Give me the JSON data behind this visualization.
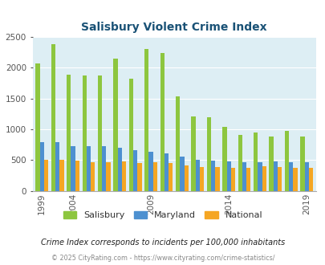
{
  "title": "Salisbury Violent Crime Index",
  "title_color": "#1a5276",
  "subtitle": "Crime Index corresponds to incidents per 100,000 inhabitants",
  "footer": "© 2025 CityRating.com - https://www.cityrating.com/crime-statistics/",
  "years": [
    1999,
    2000,
    2004,
    2005,
    2006,
    2007,
    2008,
    2009,
    2010,
    2011,
    2012,
    2013,
    2014,
    2015,
    2016,
    2017,
    2018,
    2019
  ],
  "salisbury": [
    2070,
    2380,
    1890,
    1870,
    1870,
    2150,
    1820,
    2310,
    2240,
    1540,
    1210,
    1200,
    1040,
    910,
    950,
    880,
    980,
    880
  ],
  "maryland": [
    790,
    795,
    720,
    725,
    725,
    700,
    660,
    635,
    605,
    555,
    500,
    490,
    480,
    465,
    460,
    480,
    470,
    465
  ],
  "national": [
    500,
    500,
    485,
    470,
    470,
    475,
    455,
    460,
    455,
    415,
    390,
    390,
    375,
    370,
    395,
    385,
    370,
    380
  ],
  "bar_colors": {
    "salisbury": "#8dc63f",
    "maryland": "#4d90d0",
    "national": "#f5a623"
  },
  "plot_bg_color": "#ddeef4",
  "ylim": [
    0,
    2500
  ],
  "yticks": [
    0,
    500,
    1000,
    1500,
    2000,
    2500
  ],
  "tick_years": [
    1999,
    2004,
    2009,
    2014,
    2019
  ],
  "subtitle_color": "#222222",
  "footer_color": "#888888"
}
